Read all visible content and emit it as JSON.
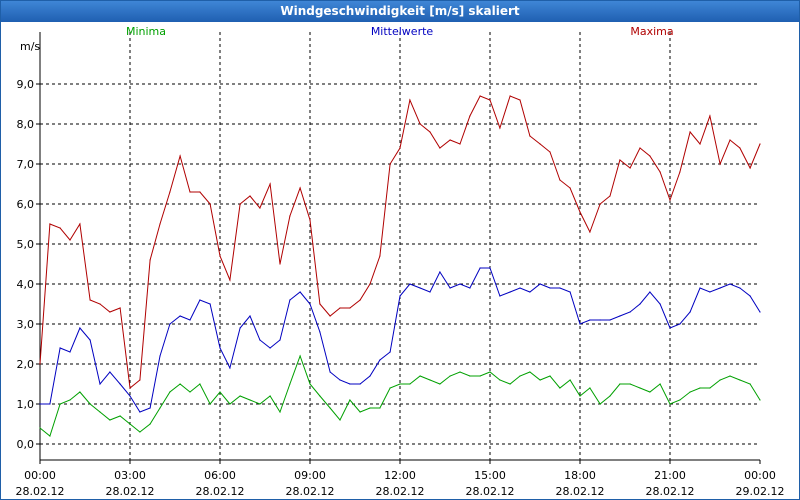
{
  "window": {
    "title": "Windgeschwindigkeit [m/s] skaliert"
  },
  "chart_data": {
    "type": "line",
    "title": "Windgeschwindigkeit [m/s] skaliert",
    "ylabel": "m/s",
    "xlabel": "",
    "ylim": [
      -0.4,
      10.3
    ],
    "xlim": [
      0,
      24
    ],
    "y_ticks": [
      "0,0",
      "1,0",
      "2,0",
      "3,0",
      "4,0",
      "5,0",
      "6,0",
      "7,0",
      "8,0",
      "9,0"
    ],
    "x_ticks": [
      {
        "time": "00:00",
        "date": "28.02.12"
      },
      {
        "time": "03:00",
        "date": "28.02.12"
      },
      {
        "time": "06:00",
        "date": "28.02.12"
      },
      {
        "time": "09:00",
        "date": "28.02.12"
      },
      {
        "time": "12:00",
        "date": "28.02.12"
      },
      {
        "time": "15:00",
        "date": "28.02.12"
      },
      {
        "time": "18:00",
        "date": "28.02.12"
      },
      {
        "time": "21:00",
        "date": "28.02.12"
      },
      {
        "time": "00:00",
        "date": "29.02.12"
      }
    ],
    "grid": true,
    "legend_position": "top",
    "series": [
      {
        "name": "Minima",
        "color": "#00a000",
        "x": [
          0,
          0.33,
          0.67,
          1,
          1.33,
          1.67,
          2,
          2.33,
          2.67,
          3,
          3.33,
          3.67,
          4,
          4.33,
          4.67,
          5,
          5.33,
          5.67,
          6,
          6.33,
          6.67,
          7,
          7.33,
          7.67,
          8,
          8.33,
          8.67,
          9,
          9.33,
          9.67,
          10,
          10.33,
          10.67,
          11,
          11.33,
          11.67,
          12,
          12.33,
          12.67,
          13,
          13.33,
          13.67,
          14,
          14.33,
          14.67,
          15,
          15.33,
          15.67,
          16,
          16.33,
          16.67,
          17,
          17.33,
          17.67,
          18,
          18.33,
          18.67,
          19,
          19.33,
          19.67,
          20,
          20.33,
          20.67,
          21,
          21.33,
          21.67,
          22,
          22.33,
          22.67,
          23,
          23.33,
          23.67,
          24
        ],
        "values": [
          0.4,
          0.2,
          1.0,
          1.1,
          1.3,
          1.0,
          0.8,
          0.6,
          0.7,
          0.5,
          0.3,
          0.5,
          0.9,
          1.3,
          1.5,
          1.3,
          1.5,
          1.0,
          1.3,
          1.0,
          1.2,
          1.1,
          1.0,
          1.2,
          0.8,
          1.5,
          2.2,
          1.5,
          1.2,
          0.9,
          0.6,
          1.1,
          0.8,
          0.9,
          0.9,
          1.4,
          1.5,
          1.5,
          1.7,
          1.6,
          1.5,
          1.7,
          1.8,
          1.7,
          1.7,
          1.8,
          1.6,
          1.5,
          1.7,
          1.8,
          1.6,
          1.7,
          1.4,
          1.6,
          1.2,
          1.4,
          1.0,
          1.2,
          1.5,
          1.5,
          1.4,
          1.3,
          1.5,
          1.0,
          1.1,
          1.3,
          1.4,
          1.4,
          1.6,
          1.7,
          1.6,
          1.5,
          1.1
        ]
      },
      {
        "name": "Mittelwerte",
        "color": "#0000c0",
        "x": [
          0,
          0.33,
          0.67,
          1,
          1.33,
          1.67,
          2,
          2.33,
          2.67,
          3,
          3.33,
          3.67,
          4,
          4.33,
          4.67,
          5,
          5.33,
          5.67,
          6,
          6.33,
          6.67,
          7,
          7.33,
          7.67,
          8,
          8.33,
          8.67,
          9,
          9.33,
          9.67,
          10,
          10.33,
          10.67,
          11,
          11.33,
          11.67,
          12,
          12.33,
          12.67,
          13,
          13.33,
          13.67,
          14,
          14.33,
          14.67,
          15,
          15.33,
          15.67,
          16,
          16.33,
          16.67,
          17,
          17.33,
          17.67,
          18,
          18.33,
          18.67,
          19,
          19.33,
          19.67,
          20,
          20.33,
          20.67,
          21,
          21.33,
          21.67,
          22,
          22.33,
          22.67,
          23,
          23.33,
          23.67,
          24
        ],
        "values": [
          1.0,
          1.0,
          2.4,
          2.3,
          2.9,
          2.6,
          1.5,
          1.8,
          1.5,
          1.2,
          0.8,
          0.9,
          2.2,
          3.0,
          3.2,
          3.1,
          3.6,
          3.5,
          2.4,
          1.9,
          2.9,
          3.2,
          2.6,
          2.4,
          2.6,
          3.6,
          3.8,
          3.5,
          2.8,
          1.8,
          1.6,
          1.5,
          1.5,
          1.7,
          2.1,
          2.3,
          3.7,
          4.0,
          3.9,
          3.8,
          4.3,
          3.9,
          4.0,
          3.9,
          4.4,
          4.4,
          3.7,
          3.8,
          3.9,
          3.8,
          4.0,
          3.9,
          3.9,
          3.8,
          3.0,
          3.1,
          3.1,
          3.1,
          3.2,
          3.3,
          3.5,
          3.8,
          3.5,
          2.9,
          3.0,
          3.3,
          3.9,
          3.8,
          3.9,
          4.0,
          3.9,
          3.7,
          3.3
        ]
      },
      {
        "name": "Maxima",
        "color": "#b00000",
        "x": [
          0,
          0.33,
          0.67,
          1,
          1.33,
          1.67,
          2,
          2.33,
          2.67,
          3,
          3.33,
          3.67,
          4,
          4.33,
          4.67,
          5,
          5.33,
          5.67,
          6,
          6.33,
          6.67,
          7,
          7.33,
          7.67,
          8,
          8.33,
          8.67,
          9,
          9.33,
          9.67,
          10,
          10.33,
          10.67,
          11,
          11.33,
          11.67,
          12,
          12.33,
          12.67,
          13,
          13.33,
          13.67,
          14,
          14.33,
          14.67,
          15,
          15.33,
          15.67,
          16,
          16.33,
          16.67,
          17,
          17.33,
          17.67,
          18,
          18.33,
          18.67,
          19,
          19.33,
          19.67,
          20,
          20.33,
          20.67,
          21,
          21.33,
          21.67,
          22,
          22.33,
          22.67,
          23,
          23.33,
          23.67,
          24
        ],
        "values": [
          2.0,
          5.5,
          5.4,
          5.1,
          5.5,
          3.6,
          3.5,
          3.3,
          3.4,
          1.4,
          1.6,
          4.6,
          5.5,
          6.3,
          7.2,
          6.3,
          6.3,
          6.0,
          4.7,
          4.1,
          6.0,
          6.2,
          5.9,
          6.5,
          4.5,
          5.7,
          6.4,
          5.6,
          3.5,
          3.2,
          3.4,
          3.4,
          3.6,
          4.0,
          4.7,
          7.0,
          7.4,
          8.6,
          8.0,
          7.8,
          7.4,
          7.6,
          7.5,
          8.2,
          8.7,
          8.6,
          7.9,
          8.7,
          8.6,
          7.7,
          7.5,
          7.3,
          6.6,
          6.4,
          5.8,
          5.3,
          6.0,
          6.2,
          7.1,
          6.9,
          7.4,
          7.2,
          6.8,
          6.1,
          6.8,
          7.8,
          7.5,
          8.2,
          7.0,
          7.6,
          7.4,
          6.9,
          7.5
        ]
      }
    ]
  }
}
